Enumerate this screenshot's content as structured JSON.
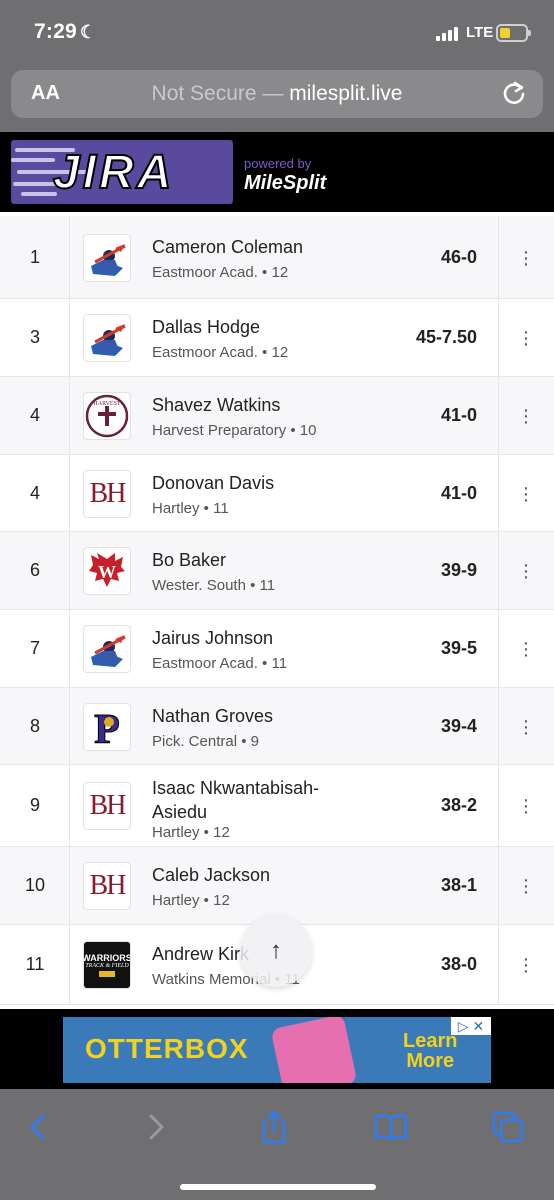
{
  "status": {
    "time": "7:29",
    "network": "LTE"
  },
  "browser": {
    "text_size_label": "AA",
    "url_prefix": "Not Secure —",
    "url_domain": "milesplit.live"
  },
  "header": {
    "logo_text": "JIRA",
    "powered_by": "powered by",
    "brand": "MileSplit"
  },
  "results": [
    {
      "place": "1",
      "name": "Cameron Coleman",
      "school": "Eastmoor Acad. • 12",
      "mark": "46-0",
      "logo": "eastmoor"
    },
    {
      "place": "3",
      "name": "Dallas Hodge",
      "school": "Eastmoor Acad. • 12",
      "mark": "45-7.50",
      "logo": "eastmoor"
    },
    {
      "place": "4",
      "name": "Shavez Watkins",
      "school": "Harvest Preparatory • 10",
      "mark": "41-0",
      "logo": "harvest"
    },
    {
      "place": "4",
      "name": "Donovan Davis",
      "school": "Hartley • 11",
      "mark": "41-0",
      "logo": "hartley"
    },
    {
      "place": "6",
      "name": "Bo Baker",
      "school": "Wester. South • 11",
      "mark": "39-9",
      "logo": "westerville"
    },
    {
      "place": "7",
      "name": "Jairus Johnson",
      "school": "Eastmoor Acad. • 11",
      "mark": "39-5",
      "logo": "eastmoor"
    },
    {
      "place": "8",
      "name": "Nathan Groves",
      "school": "Pick. Central • 9",
      "mark": "39-4",
      "logo": "pickerington"
    },
    {
      "place": "9",
      "name": "Isaac Nkwantabisah-Asiedu",
      "school": "Hartley • 12",
      "mark": "38-2",
      "logo": "hartley"
    },
    {
      "place": "10",
      "name": "Caleb Jackson",
      "school": "Hartley • 12",
      "mark": "38-1",
      "logo": "hartley"
    },
    {
      "place": "11",
      "name": "Andrew Kirk",
      "school": "Watkins Memorial • 11",
      "mark": "38-0",
      "logo": "watkins"
    }
  ],
  "logo_text": {
    "hartley": "BH",
    "harvest": "HARVEST",
    "pickerington": "P",
    "watkins_top": "WARRIORS",
    "watkins_bottom": "TRACK & FIELD"
  },
  "ad": {
    "brand": "OTTERBOX",
    "cta_line1": "Learn",
    "cta_line2": "More",
    "close": "▷ ✕"
  },
  "icons": {
    "scroll_top": "up-arrow-icon",
    "more": "more-vertical-icon",
    "toolbar": [
      "back-icon",
      "forward-icon",
      "share-icon",
      "bookmarks-icon",
      "tabs-icon"
    ]
  },
  "colors": {
    "toolbar_blue": "#2f7cf6",
    "chrome_gray": "#6f6f72",
    "jira_purple": "#5a4a9e"
  }
}
